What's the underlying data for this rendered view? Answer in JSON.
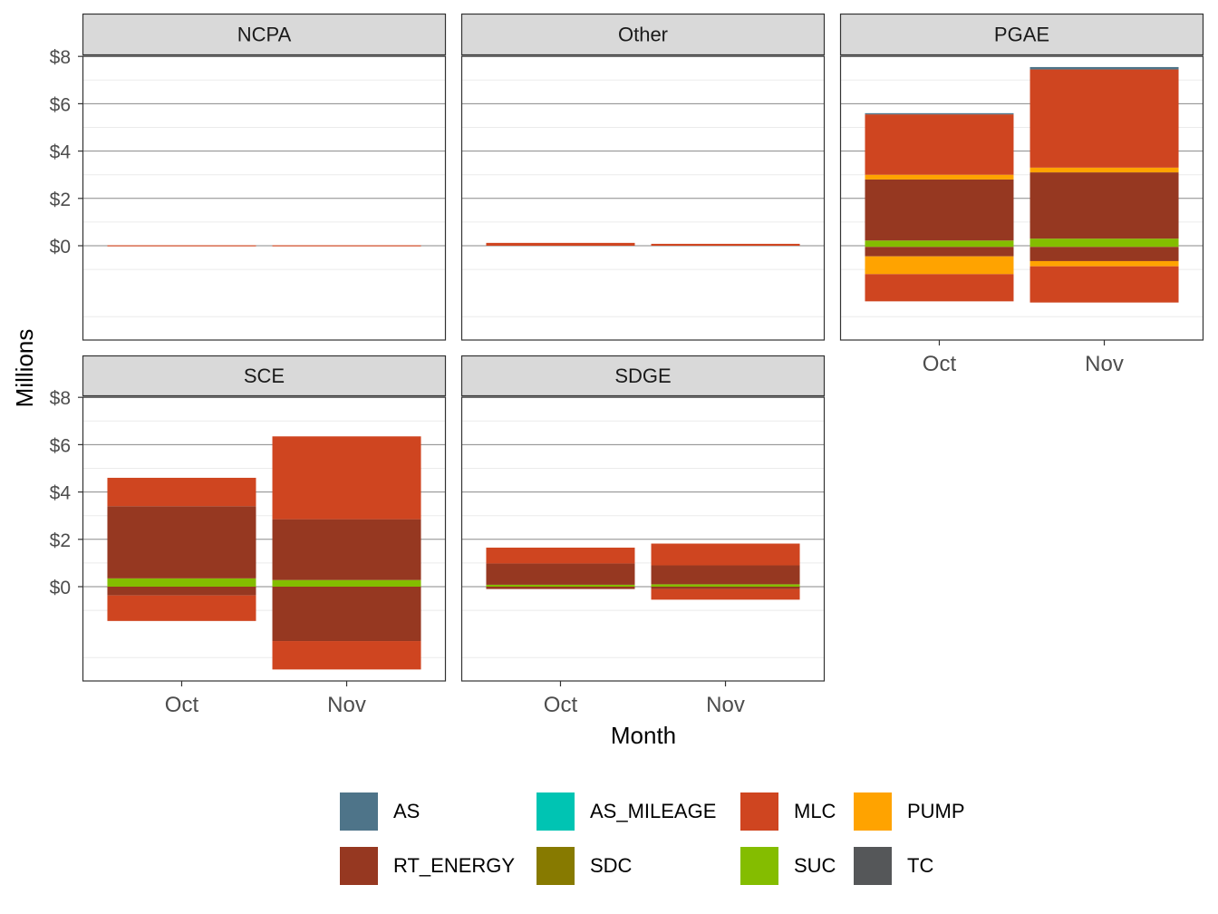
{
  "chart_data": {
    "type": "bar",
    "stacked": true,
    "facets": [
      "NCPA",
      "Other",
      "PGAE",
      "SCE",
      "SDGE"
    ],
    "categories": [
      "Oct",
      "Nov"
    ],
    "xlabel": "Month",
    "ylabel": "Millions",
    "yticks": [
      0,
      2,
      4,
      6,
      8
    ],
    "ytick_labels": [
      "$0",
      "$2",
      "$4",
      "$6",
      "$8"
    ],
    "ylim": [
      -8,
      8.1
    ],
    "grid": true,
    "legend_position": "bottom",
    "legend": [
      {
        "key": "AS",
        "label": "AS",
        "color": "#4E7489"
      },
      {
        "key": "AS_MILEAGE",
        "label": "AS_MILEAGE",
        "color": "#00C4B3"
      },
      {
        "key": "MLC",
        "label": "MLC",
        "color": "#CF4520"
      },
      {
        "key": "PUMP",
        "label": "PUMP",
        "color": "#FFA300"
      },
      {
        "key": "RT_ENERGY",
        "label": "RT_ENERGY",
        "color": "#963821"
      },
      {
        "key": "SDC",
        "label": "SDC",
        "color": "#877A00"
      },
      {
        "key": "SUC",
        "label": "SUC",
        "color": "#84BD00"
      },
      {
        "key": "TC",
        "label": "TC",
        "color": "#555759"
      }
    ],
    "panels": [
      {
        "facet": "NCPA",
        "bars": [
          {
            "month": "Oct",
            "segments": [
              {
                "s": "MLC",
                "from": 0,
                "to": 0.02
              }
            ]
          },
          {
            "month": "Nov",
            "segments": [
              {
                "s": "MLC",
                "from": 0,
                "to": 0.02
              }
            ]
          }
        ]
      },
      {
        "facet": "Other",
        "bars": [
          {
            "month": "Oct",
            "segments": [
              {
                "s": "MLC",
                "from": 0,
                "to": 0.12
              }
            ]
          },
          {
            "month": "Nov",
            "segments": [
              {
                "s": "MLC",
                "from": 0,
                "to": 0.08
              }
            ]
          }
        ]
      },
      {
        "facet": "PGAE",
        "bars": [
          {
            "month": "Oct",
            "segments": [
              {
                "s": "SUC",
                "from": 0,
                "to": 0.22
              },
              {
                "s": "RT_ENERGY",
                "from": 0.22,
                "to": 2.8
              },
              {
                "s": "PUMP",
                "from": 2.8,
                "to": 3.0
              },
              {
                "s": "MLC",
                "from": 3.0,
                "to": 5.55
              },
              {
                "s": "AS",
                "from": 5.55,
                "to": 5.6
              },
              {
                "s": "SUC",
                "from": -0.05,
                "to": 0
              },
              {
                "s": "RT_ENERGY",
                "from": -0.45,
                "to": -0.05
              },
              {
                "s": "PUMP",
                "from": -1.2,
                "to": -0.45
              },
              {
                "s": "MLC",
                "from": -2.35,
                "to": -1.2
              }
            ]
          },
          {
            "month": "Nov",
            "segments": [
              {
                "s": "SUC",
                "from": 0,
                "to": 0.3
              },
              {
                "s": "RT_ENERGY",
                "from": 0.3,
                "to": 3.1
              },
              {
                "s": "PUMP",
                "from": 3.1,
                "to": 3.3
              },
              {
                "s": "MLC",
                "from": 3.3,
                "to": 7.45
              },
              {
                "s": "AS",
                "from": 7.45,
                "to": 7.55
              },
              {
                "s": "SUC",
                "from": -0.05,
                "to": 0
              },
              {
                "s": "RT_ENERGY",
                "from": -0.65,
                "to": -0.05
              },
              {
                "s": "PUMP",
                "from": -0.87,
                "to": -0.65
              },
              {
                "s": "MLC",
                "from": -2.4,
                "to": -0.87
              }
            ]
          }
        ]
      },
      {
        "facet": "SCE",
        "bars": [
          {
            "month": "Oct",
            "segments": [
              {
                "s": "SUC",
                "from": 0,
                "to": 0.35
              },
              {
                "s": "RT_ENERGY",
                "from": 0.35,
                "to": 3.4
              },
              {
                "s": "MLC",
                "from": 3.4,
                "to": 4.6
              },
              {
                "s": "RT_ENERGY",
                "from": -0.37,
                "to": 0
              },
              {
                "s": "MLC",
                "from": -1.45,
                "to": -0.37
              }
            ]
          },
          {
            "month": "Nov",
            "segments": [
              {
                "s": "SUC",
                "from": 0,
                "to": 0.28
              },
              {
                "s": "RT_ENERGY",
                "from": 0.28,
                "to": 2.85
              },
              {
                "s": "MLC",
                "from": 2.85,
                "to": 6.35
              },
              {
                "s": "RT_ENERGY",
                "from": -2.3,
                "to": 0
              },
              {
                "s": "MLC",
                "from": -3.5,
                "to": -2.3
              }
            ]
          }
        ]
      },
      {
        "facet": "SDGE",
        "bars": [
          {
            "month": "Oct",
            "segments": [
              {
                "s": "SUC",
                "from": 0,
                "to": 0.08
              },
              {
                "s": "RT_ENERGY",
                "from": 0.08,
                "to": 0.98
              },
              {
                "s": "MLC",
                "from": 0.98,
                "to": 1.65
              },
              {
                "s": "RT_ENERGY",
                "from": -0.1,
                "to": 0
              }
            ]
          },
          {
            "month": "Nov",
            "segments": [
              {
                "s": "SUC",
                "from": 0,
                "to": 0.1
              },
              {
                "s": "RT_ENERGY",
                "from": 0.1,
                "to": 0.9
              },
              {
                "s": "MLC",
                "from": 0.9,
                "to": 1.82
              },
              {
                "s": "RT_ENERGY",
                "from": -0.1,
                "to": 0
              },
              {
                "s": "MLC",
                "from": -0.55,
                "to": -0.1
              }
            ]
          }
        ]
      }
    ]
  }
}
